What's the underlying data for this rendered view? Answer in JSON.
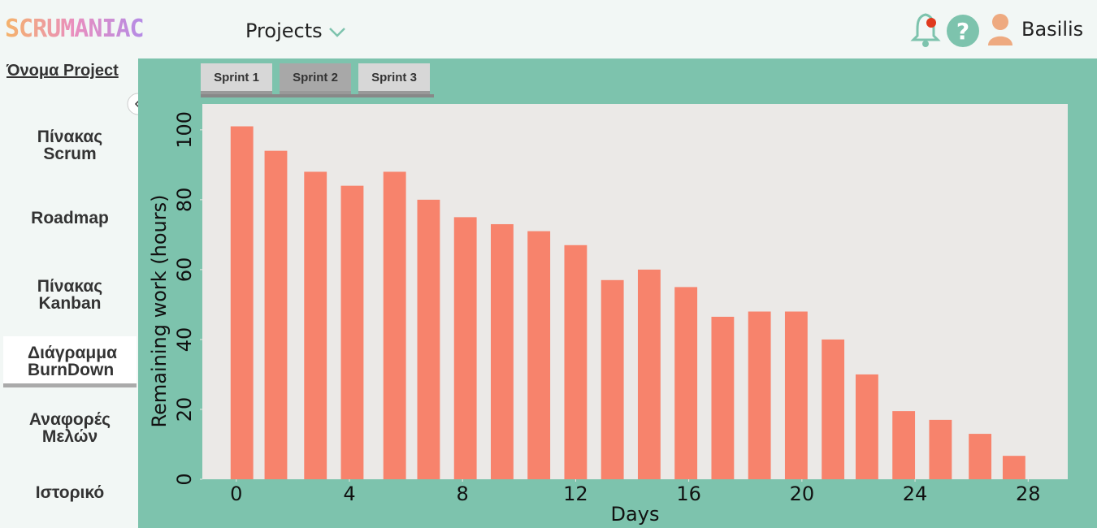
{
  "header": {
    "logo": "SCRUMANIAC",
    "menu": "Projects",
    "user": "Basilis"
  },
  "sidebar": {
    "project_name": "Όνομα Project",
    "items": [
      "Πίνακας Scrum",
      "Roadmap",
      "Πίνακας Kanban",
      "Διάγραμμα BurnDown",
      "Αναφορές Μελών",
      "Ιστορικό"
    ],
    "active": 3
  },
  "tabs": [
    "Sprint 1",
    "Sprint 2",
    "Sprint 3"
  ],
  "chart_data": {
    "type": "bar",
    "color": "#f7836c",
    "x_label": "Days",
    "y_label": "Remaining work (hours)",
    "x": [
      0.2,
      1.4,
      2.8,
      4.1,
      5.6,
      6.8,
      8.1,
      9.4,
      10.7,
      12.0,
      13.3,
      14.6,
      15.9,
      17.2,
      18.5,
      19.8,
      21.1,
      22.3,
      23.6,
      24.9,
      26.3,
      27.5
    ],
    "values": [
      101,
      94,
      88,
      84,
      88,
      80,
      75,
      73,
      71,
      67,
      57,
      60,
      55,
      46.5,
      48,
      48,
      40,
      30,
      19.5,
      17,
      13,
      6.7
    ],
    "xlim": [
      -1.2,
      29.4
    ],
    "xticks": [
      0,
      4,
      8,
      12,
      16,
      20,
      24,
      28
    ],
    "ylim": [
      0,
      107.4
    ],
    "yticks": [
      0,
      20,
      40,
      60,
      80,
      100
    ]
  }
}
